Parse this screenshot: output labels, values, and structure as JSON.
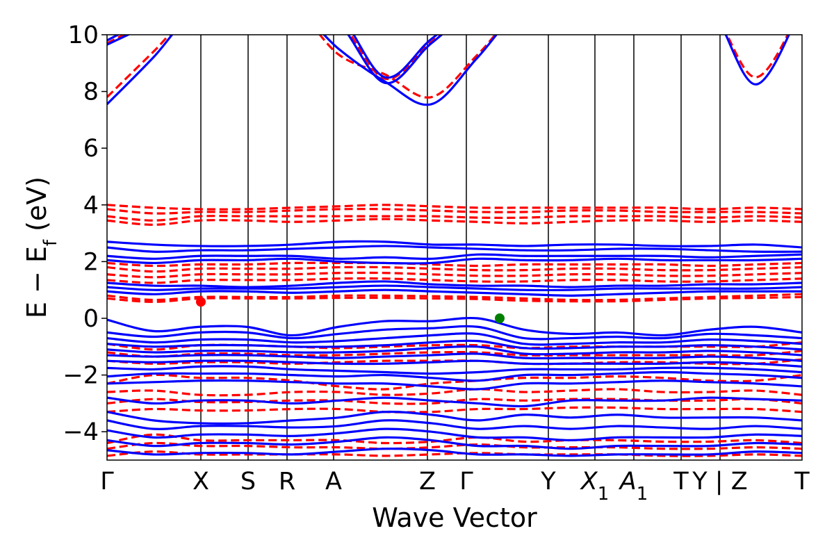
{
  "chart_data": {
    "type": "line",
    "title": "",
    "xlabel": "Wave Vector",
    "ylabel_main": "E − E",
    "ylabel_sub": "f",
    "ylabel_unit": " (eV)",
    "ylim": [
      -5,
      10
    ],
    "yticks": [
      {
        "value": -4,
        "label": "−4"
      },
      {
        "value": -2,
        "label": "−2"
      },
      {
        "value": 0,
        "label": "0"
      },
      {
        "value": 2,
        "label": "2"
      },
      {
        "value": 4,
        "label": "4"
      },
      {
        "value": 6,
        "label": "6"
      },
      {
        "value": 8,
        "label": "8"
      },
      {
        "value": 10,
        "label": "10"
      }
    ],
    "xlim": [
      0,
      1
    ],
    "kpoints": [
      {
        "pos": 0.0,
        "label": "Γ",
        "sub": ""
      },
      {
        "pos": 0.135,
        "label": "X",
        "sub": ""
      },
      {
        "pos": 0.203,
        "label": "S",
        "sub": ""
      },
      {
        "pos": 0.259,
        "label": "R",
        "sub": ""
      },
      {
        "pos": 0.326,
        "label": "A",
        "sub": ""
      },
      {
        "pos": 0.461,
        "label": "Z",
        "sub": ""
      },
      {
        "pos": 0.517,
        "label": "Γ",
        "sub": ""
      },
      {
        "pos": 0.635,
        "label": "Y",
        "sub": ""
      },
      {
        "pos": 0.702,
        "label": "X",
        "sub": "1"
      },
      {
        "pos": 0.758,
        "label": "A",
        "sub": "1"
      },
      {
        "pos": 0.826,
        "label": "T",
        "sub": ""
      },
      {
        "pos": 0.882,
        "label": "Y | Z",
        "sub": ""
      },
      {
        "pos": 1.0,
        "label": "T",
        "sub": ""
      }
    ],
    "series": [
      {
        "style": "solid",
        "color": "#0000ff",
        "bands": [
          [
            7.55,
            9.2,
            11,
            11,
            11,
            9.5,
            8.35,
            7.55,
            9.2,
            11,
            11,
            11,
            11,
            11,
            8.25,
            11
          ],
          [
            9.65,
            10.4,
            11,
            11,
            11,
            10.4,
            8.3,
            9.7,
            10.9,
            11,
            11,
            11,
            11,
            11,
            11,
            11
          ],
          [
            9.8,
            10.6,
            11,
            11,
            11,
            10.7,
            8.5,
            9.85,
            11,
            11,
            11,
            11,
            11,
            11,
            11,
            11
          ],
          [
            2.7,
            2.6,
            2.55,
            2.55,
            2.6,
            2.7,
            2.7,
            2.6,
            2.6,
            2.55,
            2.6,
            2.6,
            2.55,
            2.55,
            2.6,
            2.5
          ],
          [
            2.5,
            2.35,
            2.4,
            2.4,
            2.45,
            2.5,
            2.55,
            2.5,
            2.45,
            2.4,
            2.4,
            2.45,
            2.45,
            2.4,
            2.35,
            2.35
          ],
          [
            2.2,
            2.1,
            2.2,
            2.2,
            2.2,
            2.1,
            2.15,
            2.1,
            2.25,
            2.2,
            2.2,
            2.2,
            2.2,
            2.15,
            2.2,
            2.25
          ],
          [
            2.05,
            1.95,
            2.05,
            2.05,
            2.1,
            2.0,
            1.95,
            1.95,
            2.1,
            2.05,
            2.05,
            2.1,
            2.05,
            2.05,
            2.05,
            2.1
          ],
          [
            1.25,
            1.15,
            1.15,
            1.1,
            1.15,
            1.25,
            1.3,
            1.2,
            1.15,
            1.15,
            1.1,
            1.15,
            1.15,
            1.2,
            1.2,
            1.25
          ],
          [
            1.1,
            1.0,
            1.05,
            1.05,
            1.05,
            1.1,
            1.15,
            1.1,
            1.05,
            1.0,
            1.0,
            1.05,
            1.05,
            1.05,
            1.05,
            1.1
          ],
          [
            0.95,
            0.85,
            0.95,
            0.95,
            0.9,
            0.95,
            1.0,
            0.95,
            0.9,
            0.85,
            0.8,
            0.85,
            0.9,
            0.95,
            0.95,
            0.95
          ],
          [
            -0.05,
            -0.45,
            -0.3,
            -0.3,
            -0.6,
            -0.3,
            -0.1,
            -0.1,
            0.0,
            -0.4,
            -0.55,
            -0.5,
            -0.6,
            -0.4,
            -0.3,
            -0.5
          ],
          [
            -0.5,
            -0.65,
            -0.5,
            -0.5,
            -0.7,
            -0.55,
            -0.4,
            -0.35,
            -0.3,
            -0.7,
            -0.7,
            -0.65,
            -0.7,
            -0.55,
            -0.6,
            -0.7
          ],
          [
            -0.7,
            -0.85,
            -0.75,
            -0.75,
            -0.85,
            -0.8,
            -0.7,
            -0.6,
            -0.55,
            -0.9,
            -0.9,
            -0.85,
            -0.85,
            -0.75,
            -0.8,
            -0.9
          ],
          [
            -0.9,
            -1.0,
            -0.95,
            -0.95,
            -1.0,
            -1.0,
            -0.95,
            -0.85,
            -0.8,
            -1.05,
            -1.05,
            -1.0,
            -1.0,
            -0.95,
            -1.0,
            -1.1
          ],
          [
            -1.1,
            -1.2,
            -1.15,
            -1.15,
            -1.2,
            -1.2,
            -1.15,
            -1.05,
            -1.0,
            -1.25,
            -1.25,
            -1.2,
            -1.2,
            -1.15,
            -1.2,
            -1.3
          ],
          [
            -1.3,
            -1.35,
            -1.3,
            -1.3,
            -1.35,
            -1.4,
            -1.35,
            -1.3,
            -1.25,
            -1.4,
            -1.4,
            -1.4,
            -1.4,
            -1.35,
            -1.4,
            -1.5
          ],
          [
            -1.5,
            -1.55,
            -1.5,
            -1.5,
            -1.55,
            -1.6,
            -1.6,
            -1.55,
            -1.5,
            -1.6,
            -1.6,
            -1.6,
            -1.6,
            -1.55,
            -1.6,
            -1.7
          ],
          [
            -1.75,
            -1.8,
            -1.7,
            -1.7,
            -1.8,
            -1.85,
            -1.9,
            -1.95,
            -1.9,
            -1.8,
            -1.8,
            -1.8,
            -1.75,
            -1.75,
            -1.8,
            -1.9
          ],
          [
            -2.05,
            -1.95,
            -1.95,
            -1.95,
            -2.0,
            -2.05,
            -2.0,
            -2.1,
            -2.2,
            -2.0,
            -2.0,
            -1.95,
            -1.9,
            -1.95,
            -2.0,
            -2.1
          ],
          [
            -2.3,
            -2.25,
            -2.2,
            -2.2,
            -2.25,
            -2.3,
            -2.3,
            -2.4,
            -2.5,
            -2.3,
            -2.3,
            -2.25,
            -2.2,
            -2.25,
            -2.3,
            -2.4
          ],
          [
            -2.8,
            -3.0,
            -2.9,
            -2.9,
            -3.0,
            -2.9,
            -2.8,
            -2.9,
            -3.0,
            -3.1,
            -2.9,
            -2.9,
            -2.9,
            -2.8,
            -2.85,
            -2.9
          ],
          [
            -3.3,
            -3.6,
            -3.7,
            -3.7,
            -3.6,
            -3.5,
            -3.3,
            -3.4,
            -3.6,
            -3.4,
            -3.5,
            -3.4,
            -3.5,
            -3.5,
            -3.5,
            -3.6
          ],
          [
            -3.6,
            -3.9,
            -3.8,
            -3.8,
            -3.85,
            -3.8,
            -3.6,
            -3.7,
            -3.9,
            -3.8,
            -3.9,
            -3.8,
            -3.85,
            -3.9,
            -3.8,
            -3.9
          ],
          [
            -3.95,
            -4.2,
            -4.1,
            -4.1,
            -4.15,
            -4.05,
            -3.9,
            -4.0,
            -4.2,
            -4.2,
            -4.3,
            -4.2,
            -4.2,
            -4.2,
            -4.1,
            -4.15
          ],
          [
            -4.3,
            -4.5,
            -4.4,
            -4.4,
            -4.45,
            -4.35,
            -4.2,
            -4.3,
            -4.5,
            -4.5,
            -4.6,
            -4.5,
            -4.5,
            -4.5,
            -4.4,
            -4.45
          ],
          [
            -4.65,
            -4.8,
            -4.75,
            -4.75,
            -4.8,
            -4.7,
            -4.6,
            -4.65,
            -4.8,
            -4.8,
            -4.85,
            -4.8,
            -4.8,
            -4.8,
            -4.7,
            -4.75
          ]
        ]
      },
      {
        "style": "dashed",
        "color": "#ff0000",
        "bands": [
          [
            7.8,
            9.4,
            11,
            11,
            11,
            9.3,
            8.6,
            7.8,
            9.3,
            11,
            11,
            11,
            11,
            11,
            8.5,
            11
          ],
          [
            9.7,
            10.5,
            11,
            11,
            11,
            10.5,
            8.45,
            9.75,
            11,
            11,
            11,
            11,
            11,
            11,
            11,
            11
          ],
          [
            4.0,
            3.9,
            3.85,
            3.85,
            3.9,
            3.95,
            4.0,
            3.95,
            3.9,
            3.9,
            3.9,
            3.9,
            3.9,
            3.85,
            3.9,
            3.85
          ],
          [
            3.85,
            3.7,
            3.75,
            3.75,
            3.8,
            3.85,
            3.85,
            3.8,
            3.75,
            3.75,
            3.8,
            3.8,
            3.75,
            3.75,
            3.75,
            3.7
          ],
          [
            3.6,
            3.45,
            3.6,
            3.6,
            3.6,
            3.6,
            3.6,
            3.6,
            3.55,
            3.55,
            3.6,
            3.6,
            3.6,
            3.55,
            3.6,
            3.55
          ],
          [
            3.45,
            3.3,
            3.45,
            3.45,
            3.4,
            3.45,
            3.5,
            3.45,
            3.4,
            3.35,
            3.4,
            3.45,
            3.45,
            3.4,
            3.45,
            3.4
          ],
          [
            1.95,
            1.85,
            1.9,
            1.9,
            1.95,
            1.95,
            1.95,
            1.9,
            1.85,
            1.9,
            1.9,
            1.9,
            1.9,
            1.85,
            1.9,
            1.95
          ],
          [
            1.8,
            1.65,
            1.75,
            1.75,
            1.75,
            1.8,
            1.8,
            1.75,
            1.7,
            1.7,
            1.75,
            1.75,
            1.7,
            1.7,
            1.75,
            1.8
          ],
          [
            1.55,
            1.45,
            1.55,
            1.55,
            1.55,
            1.6,
            1.6,
            1.55,
            1.5,
            1.5,
            1.55,
            1.55,
            1.5,
            1.5,
            1.55,
            1.6
          ],
          [
            1.35,
            1.25,
            1.35,
            1.35,
            1.35,
            1.4,
            1.4,
            1.35,
            1.3,
            1.3,
            1.35,
            1.35,
            1.3,
            1.3,
            1.35,
            1.4
          ],
          [
            0.8,
            0.65,
            0.75,
            0.75,
            0.75,
            0.8,
            0.8,
            0.78,
            0.75,
            0.7,
            0.65,
            0.65,
            0.7,
            0.75,
            0.8,
            0.85
          ],
          [
            0.7,
            0.58,
            0.7,
            0.7,
            0.7,
            0.72,
            0.72,
            0.7,
            0.68,
            0.62,
            0.6,
            0.6,
            0.65,
            0.7,
            0.72,
            0.75
          ],
          [
            -0.9,
            -1.1,
            -0.95,
            -0.95,
            -1.0,
            -1.05,
            -1.0,
            -0.95,
            -0.95,
            -1.05,
            -1.0,
            -1.0,
            -1.0,
            -1.0,
            -1.0,
            -0.85
          ],
          [
            -1.2,
            -1.35,
            -1.25,
            -1.25,
            -1.3,
            -1.3,
            -1.25,
            -1.2,
            -1.2,
            -1.3,
            -1.3,
            -1.3,
            -1.3,
            -1.3,
            -1.3,
            -1.15
          ],
          [
            -1.5,
            -1.6,
            -1.55,
            -1.55,
            -1.6,
            -1.55,
            -1.5,
            -1.5,
            -1.5,
            -1.6,
            -1.6,
            -1.55,
            -1.55,
            -1.6,
            -1.6,
            -1.45
          ],
          [
            -2.3,
            -2.0,
            -2.1,
            -2.1,
            -2.2,
            -2.4,
            -2.5,
            -2.3,
            -2.2,
            -2.1,
            -2.1,
            -2.05,
            -2.1,
            -2.2,
            -2.2,
            -2.0
          ],
          [
            -2.6,
            -2.55,
            -2.7,
            -2.7,
            -2.6,
            -2.6,
            -2.7,
            -2.65,
            -2.5,
            -2.6,
            -2.55,
            -2.5,
            -2.6,
            -2.6,
            -2.55,
            -2.7
          ],
          [
            -3.0,
            -2.85,
            -2.95,
            -2.95,
            -2.9,
            -2.9,
            -3.0,
            -3.0,
            -2.85,
            -2.9,
            -2.85,
            -2.85,
            -2.9,
            -2.9,
            -2.85,
            -3.0
          ],
          [
            -3.3,
            -3.2,
            -3.25,
            -3.25,
            -3.2,
            -3.2,
            -3.3,
            -3.3,
            -3.2,
            -3.2,
            -3.15,
            -3.15,
            -3.2,
            -3.2,
            -3.2,
            -3.3
          ],
          [
            -4.4,
            -4.1,
            -4.3,
            -4.3,
            -4.3,
            -4.3,
            -4.4,
            -4.35,
            -4.2,
            -4.35,
            -4.3,
            -4.3,
            -4.35,
            -4.35,
            -4.3,
            -4.4
          ],
          [
            -4.6,
            -4.4,
            -4.5,
            -4.5,
            -4.55,
            -4.55,
            -4.6,
            -4.55,
            -4.45,
            -4.55,
            -4.55,
            -4.55,
            -4.6,
            -4.6,
            -4.55,
            -4.6
          ],
          [
            -4.85,
            -4.7,
            -4.8,
            -4.8,
            -4.8,
            -4.8,
            -4.85,
            -4.8,
            -4.75,
            -4.8,
            -4.8,
            -4.8,
            -4.85,
            -4.85,
            -4.8,
            -4.85
          ]
        ]
      }
    ],
    "markers": [
      {
        "name": "conduction-band-minimum",
        "x": 0.135,
        "y": 0.58,
        "color": "#ff0000"
      },
      {
        "name": "valence-band-maximum",
        "x": 0.565,
        "y": 0.0,
        "color": "#008000"
      }
    ]
  }
}
